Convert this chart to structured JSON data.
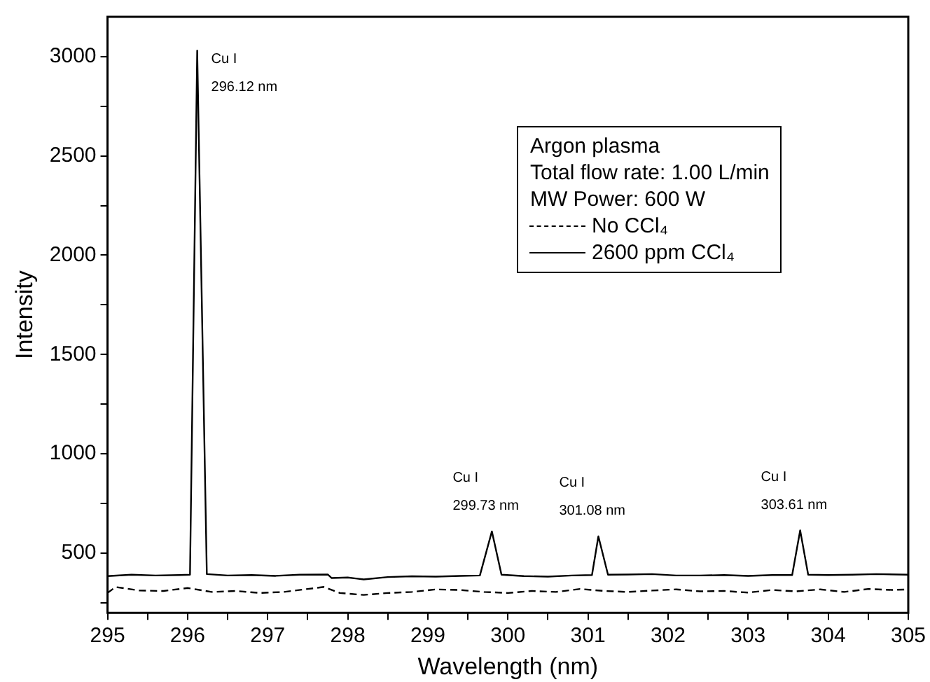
{
  "chart_data": {
    "type": "line",
    "xlabel": "Wavelength (nm)",
    "ylabel": "Intensity",
    "xlim": [
      295,
      305
    ],
    "xticks": [
      295,
      {
        "value": 295.5,
        "label": null
      },
      296,
      {
        "value": 296.5,
        "label": null
      },
      297,
      {
        "value": 297.5,
        "label": null
      },
      298,
      {
        "value": 298.5,
        "label": null
      },
      299,
      {
        "value": 299.5,
        "label": null
      },
      300,
      {
        "value": 300.5,
        "label": null
      },
      301,
      {
        "value": 301.5,
        "label": null
      },
      302,
      {
        "value": 302.5,
        "label": null
      },
      303,
      {
        "value": 303.5,
        "label": null
      },
      304,
      {
        "value": 304.5,
        "label": null
      },
      305
    ],
    "ylim": [
      200,
      3200
    ],
    "yticks": [
      {
        "value": 250,
        "label": null
      },
      500,
      {
        "value": 750,
        "label": null
      },
      1000,
      {
        "value": 1250,
        "label": null
      },
      1500,
      {
        "value": 1750,
        "label": null
      },
      2000,
      {
        "value": 2250,
        "label": null
      },
      2500,
      {
        "value": 2750,
        "label": null
      },
      3000
    ],
    "grid": false,
    "legend": "top right",
    "marker": "none",
    "series": [
      {
        "name": "No CCl₄",
        "color": "#000000",
        "line_style": "dashed",
        "x": [
          295,
          295.1,
          295.4,
          295.7,
          296.0,
          296.3,
          296.6,
          296.9,
          297.2,
          297.5,
          297.7,
          297.9,
          298.2,
          298.5,
          298.8,
          299.1,
          299.4,
          299.7,
          300.0,
          300.3,
          300.6,
          300.9,
          301.2,
          301.5,
          301.8,
          302.1,
          302.4,
          302.7,
          303.0,
          303.3,
          303.6,
          303.9,
          304.2,
          304.5,
          304.8,
          305
        ],
        "values": [
          300,
          330,
          312,
          310,
          325,
          305,
          310,
          300,
          305,
          320,
          330,
          300,
          290,
          300,
          305,
          318,
          315,
          305,
          300,
          310,
          305,
          320,
          310,
          305,
          312,
          318,
          308,
          310,
          302,
          315,
          308,
          318,
          305,
          320,
          315,
          318
        ]
      },
      {
        "name": "2600 ppm CCl₄",
        "color": "#000000",
        "line_style": "solid",
        "x": [
          295,
          295.3,
          295.6,
          295.9,
          296.03,
          296.12,
          296.24,
          296.5,
          296.8,
          297.1,
          297.4,
          297.75,
          297.8,
          298.0,
          298.2,
          298.5,
          298.8,
          299.1,
          299.4,
          299.65,
          299.8,
          299.92,
          300.2,
          300.5,
          300.8,
          301.05,
          301.13,
          301.25,
          301.5,
          301.8,
          302.1,
          302.4,
          302.7,
          303.0,
          303.3,
          303.55,
          303.65,
          303.75,
          304.0,
          304.3,
          304.6,
          305
        ],
        "values": [
          385,
          392,
          388,
          390,
          392,
          3030,
          395,
          388,
          390,
          386,
          392,
          393,
          375,
          378,
          368,
          380,
          384,
          382,
          386,
          388,
          610,
          392,
          385,
          382,
          388,
          390,
          585,
          392,
          393,
          395,
          388,
          388,
          390,
          386,
          390,
          390,
          615,
          392,
          390,
          392,
          395,
          392
        ]
      }
    ],
    "annotations": [
      "Argon plasma",
      "Total flow rate: 1.00 L/min",
      "MW Power: 600 W",
      {
        "text": "Cu I\n296.12 nm",
        "x": 296.12,
        "y": 3030
      },
      {
        "text": "Cu I\n299.73 nm",
        "x": 299.8,
        "y": 610
      },
      {
        "text": "Cu I\n301.08 nm",
        "x": 301.13,
        "y": 585
      },
      {
        "text": "Cu I\n303.61 nm",
        "x": 303.65,
        "y": 615
      }
    ]
  }
}
